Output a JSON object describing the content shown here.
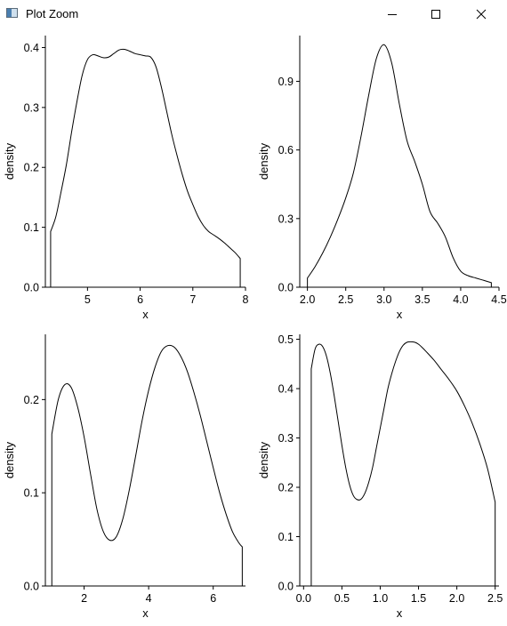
{
  "window": {
    "title": "Plot Zoom",
    "icon": "app-window-icon",
    "controls": [
      "minimize-icon",
      "maximize-icon",
      "close-icon"
    ]
  },
  "chart_data": [
    {
      "type": "area",
      "title": "",
      "xlabel": "x",
      "ylabel": "density",
      "xlim": [
        4.2,
        8.0
      ],
      "ylim": [
        0,
        0.42
      ],
      "xticks": [
        5,
        6,
        7,
        8
      ],
      "yticks": [
        0.0,
        0.1,
        0.2,
        0.3,
        0.4
      ],
      "ytick_labels": [
        "0.0",
        "0.1",
        "0.2",
        "0.3",
        "0.4"
      ],
      "grid": false,
      "series": [
        {
          "x": [
            4.3,
            4.4,
            4.5,
            4.6,
            4.7,
            4.8,
            4.9,
            5.0,
            5.1,
            5.2,
            5.3,
            5.4,
            5.5,
            5.6,
            5.7,
            5.8,
            5.9,
            6.0,
            6.1,
            6.2,
            6.3,
            6.4,
            6.5,
            6.6,
            6.7,
            6.8,
            6.9,
            7.0,
            7.1,
            7.2,
            7.3,
            7.4,
            7.5,
            7.6,
            7.7,
            7.8,
            7.9
          ],
          "y": [
            0.093,
            0.118,
            0.16,
            0.205,
            0.26,
            0.31,
            0.354,
            0.38,
            0.388,
            0.386,
            0.383,
            0.384,
            0.39,
            0.396,
            0.397,
            0.394,
            0.39,
            0.388,
            0.386,
            0.384,
            0.368,
            0.335,
            0.295,
            0.255,
            0.22,
            0.188,
            0.16,
            0.138,
            0.118,
            0.103,
            0.093,
            0.087,
            0.081,
            0.074,
            0.066,
            0.058,
            0.048
          ]
        }
      ]
    },
    {
      "type": "area",
      "title": "",
      "xlabel": "x",
      "ylabel": "density",
      "xlim": [
        1.9,
        4.5
      ],
      "ylim": [
        0,
        1.1
      ],
      "xticks": [
        2.0,
        2.5,
        3.0,
        3.5,
        4.0,
        4.5
      ],
      "xtick_labels": [
        "2.0",
        "2.5",
        "3.0",
        "3.5",
        "4.0",
        "4.5"
      ],
      "yticks": [
        0.0,
        0.3,
        0.6,
        0.9
      ],
      "ytick_labels": [
        "0.0",
        "0.3",
        "0.6",
        "0.9"
      ],
      "grid": false,
      "series": [
        {
          "x": [
            2.0,
            2.1,
            2.2,
            2.3,
            2.4,
            2.5,
            2.6,
            2.7,
            2.8,
            2.9,
            3.0,
            3.1,
            3.2,
            3.3,
            3.4,
            3.5,
            3.6,
            3.7,
            3.8,
            3.9,
            4.0,
            4.1,
            4.2,
            4.3,
            4.4
          ],
          "y": [
            0.04,
            0.09,
            0.15,
            0.22,
            0.3,
            0.39,
            0.5,
            0.66,
            0.84,
            1.0,
            1.06,
            0.98,
            0.8,
            0.64,
            0.55,
            0.45,
            0.33,
            0.28,
            0.22,
            0.13,
            0.07,
            0.05,
            0.04,
            0.03,
            0.02
          ]
        }
      ]
    },
    {
      "type": "area",
      "title": "",
      "xlabel": "x",
      "ylabel": "density",
      "xlim": [
        0.8,
        7.0
      ],
      "ylim": [
        0,
        0.27
      ],
      "xticks": [
        2,
        4,
        6
      ],
      "yticks": [
        0.0,
        0.1,
        0.2
      ],
      "ytick_labels": [
        "0.0",
        "0.1",
        "0.2"
      ],
      "grid": false,
      "series": [
        {
          "x": [
            1.0,
            1.2,
            1.4,
            1.6,
            1.8,
            2.0,
            2.2,
            2.4,
            2.6,
            2.8,
            3.0,
            3.2,
            3.4,
            3.6,
            3.8,
            4.0,
            4.2,
            4.4,
            4.6,
            4.8,
            5.0,
            5.2,
            5.4,
            5.6,
            5.8,
            6.0,
            6.2,
            6.4,
            6.6,
            6.8,
            6.9
          ],
          "y": [
            0.163,
            0.2,
            0.216,
            0.213,
            0.192,
            0.16,
            0.12,
            0.082,
            0.058,
            0.049,
            0.053,
            0.072,
            0.103,
            0.14,
            0.178,
            0.21,
            0.235,
            0.252,
            0.258,
            0.256,
            0.246,
            0.23,
            0.208,
            0.183,
            0.155,
            0.127,
            0.1,
            0.077,
            0.058,
            0.046,
            0.042
          ]
        }
      ]
    },
    {
      "type": "area",
      "title": "",
      "xlabel": "x",
      "ylabel": "density",
      "xlim": [
        -0.05,
        2.55
      ],
      "ylim": [
        0,
        0.51
      ],
      "xticks": [
        0.0,
        0.5,
        1.0,
        1.5,
        2.0,
        2.5
      ],
      "xtick_labels": [
        "0.0",
        "0.5",
        "1.0",
        "1.5",
        "2.0",
        "2.5"
      ],
      "yticks": [
        0.0,
        0.1,
        0.2,
        0.3,
        0.4,
        0.5
      ],
      "ytick_labels": [
        "0.0",
        "0.1",
        "0.2",
        "0.3",
        "0.4",
        "0.5"
      ],
      "grid": false,
      "series": [
        {
          "x": [
            0.1,
            0.15,
            0.2,
            0.25,
            0.3,
            0.35,
            0.4,
            0.45,
            0.5,
            0.55,
            0.6,
            0.65,
            0.7,
            0.75,
            0.8,
            0.85,
            0.9,
            0.95,
            1.0,
            1.05,
            1.1,
            1.15,
            1.2,
            1.25,
            1.3,
            1.35,
            1.4,
            1.45,
            1.5,
            1.55,
            1.6,
            1.7,
            1.8,
            1.9,
            2.0,
            2.1,
            2.2,
            2.3,
            2.4,
            2.5
          ],
          "y": [
            0.44,
            0.48,
            0.49,
            0.485,
            0.465,
            0.43,
            0.385,
            0.335,
            0.285,
            0.24,
            0.205,
            0.183,
            0.175,
            0.176,
            0.188,
            0.21,
            0.24,
            0.28,
            0.32,
            0.36,
            0.4,
            0.43,
            0.455,
            0.475,
            0.488,
            0.494,
            0.495,
            0.494,
            0.49,
            0.483,
            0.475,
            0.458,
            0.438,
            0.418,
            0.395,
            0.365,
            0.33,
            0.288,
            0.238,
            0.17
          ]
        }
      ]
    }
  ]
}
